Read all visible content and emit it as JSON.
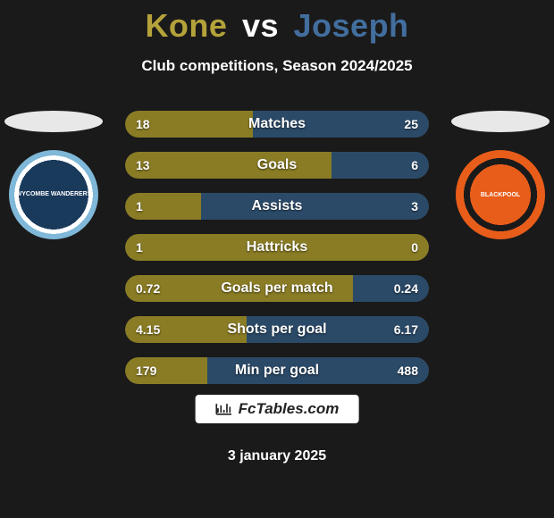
{
  "header": {
    "player1": "Kone",
    "vs": "vs",
    "player2": "Joseph",
    "player1_color": "#b4a23a",
    "player2_color": "#426e9e",
    "subtitle": "Club competitions, Season 2024/2025"
  },
  "teams": {
    "left": {
      "name": "Wycombe Wanderers",
      "ellipse_color": "#e8e8e8",
      "crest_label": "WYCOMBE WANDERERS"
    },
    "right": {
      "name": "Blackpool",
      "ellipse_color": "#e8e8e8",
      "crest_label": "BLACKPOOL"
    }
  },
  "stats": {
    "left_color": "#8a7c25",
    "right_color": "#2b4a68",
    "bg_color": "#3a3a3a",
    "rows": [
      {
        "label": "Matches",
        "left_val": "18",
        "right_val": "25",
        "left_pct": 42,
        "right_pct": 58
      },
      {
        "label": "Goals",
        "left_val": "13",
        "right_val": "6",
        "left_pct": 68,
        "right_pct": 32
      },
      {
        "label": "Assists",
        "left_val": "1",
        "right_val": "3",
        "left_pct": 25,
        "right_pct": 75
      },
      {
        "label": "Hattricks",
        "left_val": "1",
        "right_val": "0",
        "left_pct": 100,
        "right_pct": 0
      },
      {
        "label": "Goals per match",
        "left_val": "0.72",
        "right_val": "0.24",
        "left_pct": 75,
        "right_pct": 25
      },
      {
        "label": "Shots per goal",
        "left_val": "4.15",
        "right_val": "6.17",
        "left_pct": 40,
        "right_pct": 60
      },
      {
        "label": "Min per goal",
        "left_val": "179",
        "right_val": "488",
        "left_pct": 27,
        "right_pct": 73
      }
    ]
  },
  "branding": "FcTables.com",
  "date": "3 january 2025"
}
